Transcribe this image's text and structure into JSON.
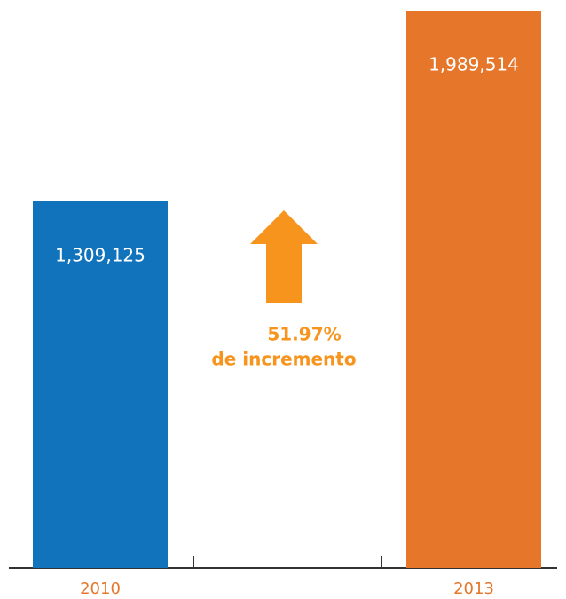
{
  "chart_data": {
    "type": "bar",
    "categories": [
      "2010",
      "2013"
    ],
    "values": [
      1309125,
      1989514
    ],
    "value_labels": [
      "1,309,125",
      "1,989,514"
    ],
    "colors": [
      "#1273bd",
      "#e5762a"
    ],
    "annotations": [
      "51.97%",
      "de incremento"
    ]
  }
}
